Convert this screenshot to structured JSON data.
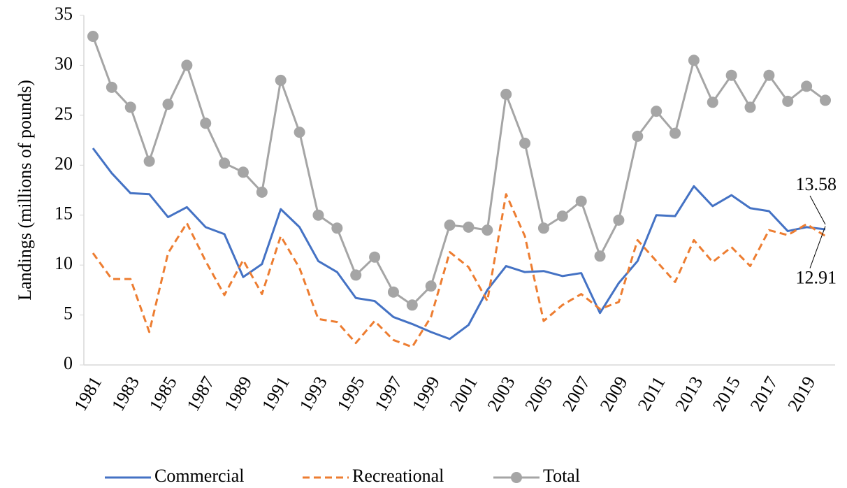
{
  "chart_data": {
    "type": "line",
    "y_label": "Landings (millions of pounds)",
    "categories": [
      "1981",
      null,
      "1983",
      null,
      "1985",
      null,
      "1987",
      null,
      "1989",
      null,
      "1991",
      null,
      "1993",
      null,
      "1995",
      null,
      "1997",
      null,
      "1999",
      null,
      "2001",
      null,
      "2003",
      null,
      "2005",
      null,
      "2007",
      null,
      "2009",
      null,
      "2011",
      null,
      "2013",
      null,
      "2015",
      null,
      "2017",
      null,
      "2019",
      null
    ],
    "series": [
      {
        "name": "Commercial",
        "color": "#4472c4",
        "dash": "solid",
        "markers": false,
        "label_last": true,
        "values": [
          21.7,
          19.2,
          17.2,
          17.1,
          14.8,
          15.8,
          13.8,
          13.1,
          8.8,
          10.1,
          15.6,
          13.8,
          10.4,
          9.3,
          6.7,
          6.4,
          4.8,
          4.1,
          3.3,
          2.6,
          4.0,
          7.5,
          9.9,
          9.3,
          9.4,
          8.9,
          9.2,
          5.2,
          8.2,
          10.4,
          15.0,
          14.9,
          17.9,
          15.9,
          17.0,
          15.7,
          15.4,
          13.4,
          13.8,
          13.58
        ]
      },
      {
        "name": "Recreational",
        "color": "#ed7d31",
        "dash": "dashed",
        "markers": false,
        "label_last": true,
        "values": [
          11.2,
          8.6,
          8.6,
          3.3,
          11.2,
          14.2,
          10.4,
          7.0,
          10.5,
          7.1,
          12.9,
          9.7,
          4.6,
          4.3,
          2.2,
          4.4,
          2.5,
          1.8,
          4.8,
          11.3,
          9.8,
          6.4,
          17.1,
          12.9,
          4.4,
          6.0,
          7.1,
          5.6,
          6.3,
          12.5,
          10.4,
          8.3,
          12.5,
          10.3,
          11.8,
          9.9,
          13.5,
          13.0,
          14.1,
          12.91
        ]
      },
      {
        "name": "Total",
        "color": "#a5a5a5",
        "dash": "solid",
        "markers": true,
        "label_last": false,
        "values": [
          32.9,
          27.8,
          25.8,
          20.4,
          26.1,
          30.0,
          24.2,
          20.2,
          19.3,
          17.3,
          28.5,
          23.3,
          15.0,
          13.7,
          9.0,
          10.8,
          7.3,
          6.0,
          7.9,
          14.0,
          13.8,
          13.5,
          27.1,
          22.2,
          13.7,
          14.9,
          16.4,
          10.9,
          14.5,
          22.9,
          25.4,
          23.2,
          30.5,
          26.3,
          29.0,
          25.8,
          29.0,
          26.4,
          27.9,
          26.5
        ]
      }
    ],
    "ylim": [
      0,
      35
    ],
    "yticks": [
      0,
      5,
      10,
      15,
      20,
      25,
      30,
      35
    ],
    "grid": false,
    "legend": "bottom"
  }
}
